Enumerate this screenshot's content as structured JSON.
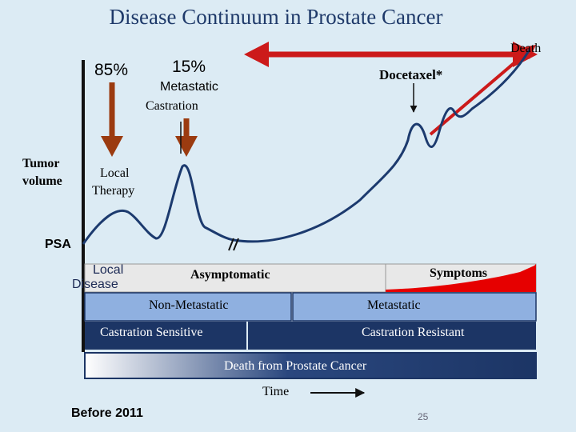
{
  "title": "Disease Continuum in Prostate Cancer",
  "labels": {
    "death": "Death",
    "pct_85": "85%",
    "pct_15": "15%",
    "metastatic_castration_line1": "Metastatic",
    "metastatic_castration_line2": "Castration",
    "docetaxel": "Docetaxel*",
    "tumor_volume_line1": "Tumor",
    "tumor_volume_line2": "volume",
    "local_therapy_line1": "Local",
    "local_therapy_line2": "Therapy",
    "psa": "PSA",
    "local_disease_line1": "Local",
    "local_disease_line2": "Disease",
    "asymptomatic": "Asymptomatic",
    "symptoms": "Symptoms",
    "non_metastatic": "Non-Metastatic",
    "metastatic": "Metastatic",
    "castration_sensitive": "Castration Sensitive",
    "castration_resistant": "Castration Resistant",
    "death_from_prostate_cancer": "Death from Prostate Cancer",
    "time": "Time",
    "before_2011": "Before 2011",
    "page_number": "25"
  },
  "colors": {
    "title": "#1f3a6a",
    "background": "#dcebf4",
    "red_arrow": "#cc1a1a",
    "brown_arrow": "#9b3b10",
    "curve": "#1c3a6e",
    "light_blue_bar": "#8fb0e0",
    "dark_navy_bar": "#1c3565",
    "symptoms_red": "#e60000"
  }
}
